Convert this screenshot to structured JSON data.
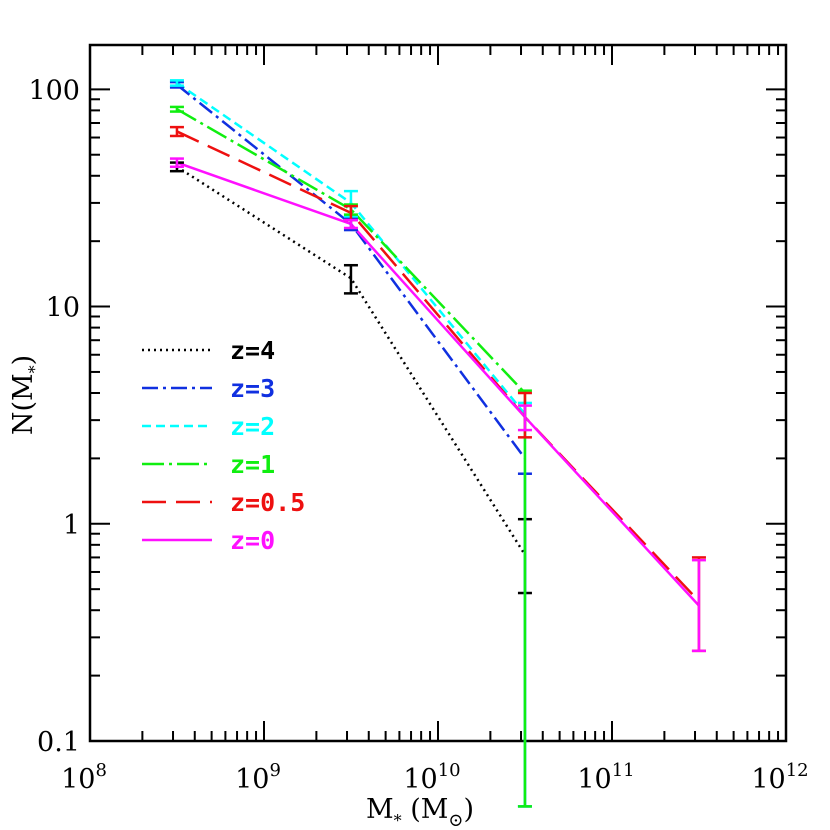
{
  "chart_data": {
    "type": "line",
    "xscale": "log",
    "yscale": "log",
    "xlim": [
      100000000.0,
      1000000000000.0
    ],
    "ylim": [
      0.1,
      160
    ],
    "xlabel": "M",
    "xlabel_sub": "*",
    "xlabel_unit_open": " (M",
    "xlabel_unit_sub": "⊙",
    "xlabel_unit_close": ")",
    "ylabel": "N(M",
    "ylabel_sub": "*",
    "ylabel_close": ")",
    "x_tick_labels": [
      {
        "base": "10",
        "exp": "8",
        "value": 100000000.0
      },
      {
        "base": "10",
        "exp": "9",
        "value": 1000000000.0
      },
      {
        "base": "10",
        "exp": "10",
        "value": 10000000000.0
      },
      {
        "base": "10",
        "exp": "11",
        "value": 100000000000.0
      },
      {
        "base": "10",
        "exp": "12",
        "value": 1000000000000.0
      }
    ],
    "y_tick_labels": [
      {
        "text": "0.1",
        "value": 0.1
      },
      {
        "text": "1",
        "value": 1
      },
      {
        "text": "10",
        "value": 10
      },
      {
        "text": "100",
        "value": 100
      }
    ],
    "legend_position": "left-middle",
    "series": [
      {
        "name": "z=4",
        "color": "#000000",
        "dash": "2,4",
        "x": [
          316000000.0,
          3160000000.0,
          31600000000.0
        ],
        "y": [
          44,
          13.5,
          0.72
        ],
        "err_low": [
          42,
          11.5,
          0.48
        ],
        "err_high": [
          46,
          15.5,
          1.05
        ]
      },
      {
        "name": "z=3",
        "color": "#1030e0",
        "dash": "16,5,3,5",
        "x": [
          316000000.0,
          3160000000.0,
          31600000000.0
        ],
        "y": [
          105,
          24,
          2.0
        ],
        "err_low": [
          102,
          22.5,
          0.05
        ],
        "err_high": [
          108,
          25.5,
          1.7
        ]
      },
      {
        "name": "z=2",
        "color": "#00ffff",
        "dash": "9,5",
        "x": [
          316000000.0,
          3160000000.0,
          31600000000.0
        ],
        "y": [
          107,
          30,
          3.2
        ],
        "err_low": [
          104,
          26,
          0.05
        ],
        "err_high": [
          110,
          34,
          3.6
        ]
      },
      {
        "name": "z=1",
        "color": "#10ee10",
        "dash": "22,5,3,5",
        "x": [
          316000000.0,
          3160000000.0,
          31600000000.0
        ],
        "y": [
          81,
          28,
          4.0
        ],
        "err_low": [
          79,
          26.5,
          0.05
        ],
        "err_high": [
          83,
          29.5,
          4.1
        ]
      },
      {
        "name": "z=0.5",
        "color": "#ee1010",
        "dash": "24,10",
        "x": [
          316000000.0,
          3160000000.0,
          31600000000.0,
          316000000000.0
        ],
        "y": [
          64,
          27,
          3.1,
          0.44
        ],
        "err_low": [
          61,
          25,
          2.5,
          0.26
        ],
        "err_high": [
          67,
          29,
          4.0,
          0.7
        ]
      },
      {
        "name": "z=0",
        "color": "#ff10ff",
        "dash": "",
        "x": [
          316000000.0,
          3160000000.0,
          31600000000.0,
          316000000000.0
        ],
        "y": [
          46,
          24,
          3.1,
          0.42
        ],
        "err_low": [
          44,
          23,
          2.7,
          0.26
        ],
        "err_high": [
          48,
          25,
          3.5,
          0.68
        ]
      }
    ]
  }
}
